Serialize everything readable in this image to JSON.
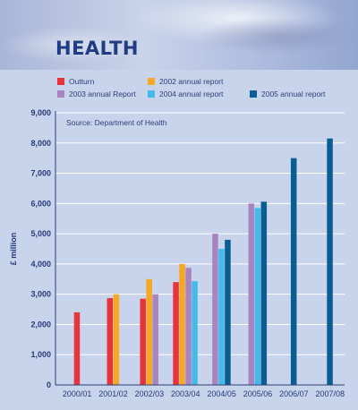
{
  "header": {
    "title": "HEALTH"
  },
  "legend": [
    {
      "label": "Outturn",
      "color": "#e8323c"
    },
    {
      "label": "2002 annual report",
      "color": "#f7a823"
    },
    {
      "label": "2003 annual Report",
      "color": "#a884c1"
    },
    {
      "label": "2004 annual report",
      "color": "#45b9e8"
    },
    {
      "label": "2005 annual report",
      "color": "#0a5d91"
    }
  ],
  "chart_data": {
    "type": "bar",
    "source": "Source: Department of Health",
    "ylabel": "£ million",
    "ylim": [
      0,
      9000
    ],
    "yticks": [
      "0",
      "1,000",
      "2,000",
      "3,000",
      "4,000",
      "5,000",
      "6,000",
      "7,000",
      "8,000",
      "9,000"
    ],
    "categories": [
      "2000/01",
      "2001/02",
      "2002/03",
      "2003/04",
      "2004/05",
      "2005/06",
      "2006/07",
      "2007/08"
    ],
    "series": [
      {
        "name": "Outturn",
        "color": "#e8323c",
        "values": [
          2400,
          2870,
          2850,
          3400,
          null,
          null,
          null,
          null
        ]
      },
      {
        "name": "2002 annual report",
        "color": "#f7a823",
        "values": [
          null,
          3000,
          3500,
          4000,
          null,
          null,
          null,
          null
        ]
      },
      {
        "name": "2003 annual Report",
        "color": "#a884c1",
        "values": [
          null,
          null,
          3000,
          3870,
          5000,
          6000,
          null,
          null
        ]
      },
      {
        "name": "2004 annual report",
        "color": "#45b9e8",
        "values": [
          null,
          null,
          null,
          3430,
          4500,
          5850,
          null,
          null
        ]
      },
      {
        "name": "2005 annual report",
        "color": "#0a5d91",
        "values": [
          null,
          null,
          null,
          null,
          4800,
          6060,
          7500,
          8150
        ]
      }
    ]
  }
}
